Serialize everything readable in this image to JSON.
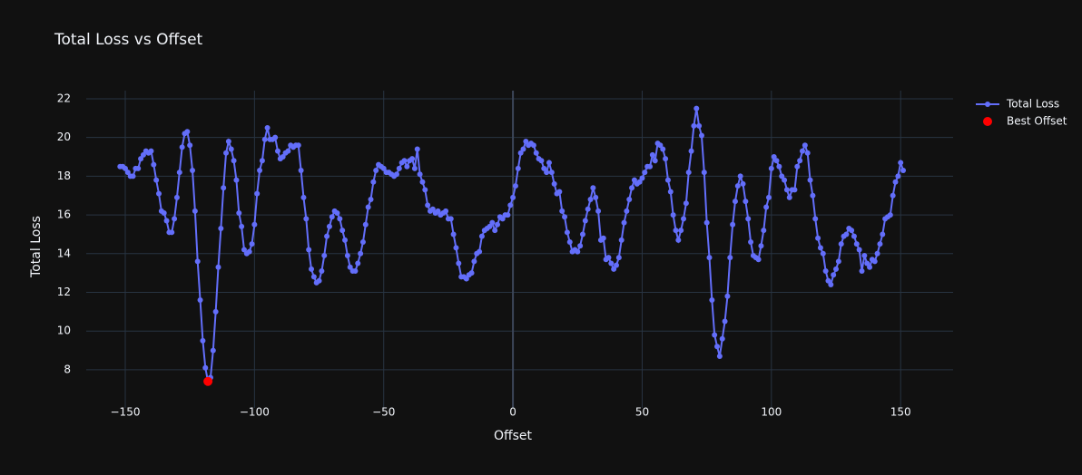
{
  "chart_data": {
    "type": "line",
    "title": "Total Loss vs Offset",
    "x_label": "Offset",
    "y_label": "Total Loss",
    "xlim": [
      -165.1,
      170.3
    ],
    "ylim": [
      6.03,
      22.42
    ],
    "xticks": [
      {
        "value": -150,
        "label": "−150"
      },
      {
        "value": -100,
        "label": "−100"
      },
      {
        "value": -50,
        "label": "−50"
      },
      0,
      50,
      100,
      150
    ],
    "yticks": [
      8,
      10,
      12,
      14,
      16,
      18,
      20,
      22
    ],
    "grid": true,
    "legend": "top-right",
    "series": [
      {
        "name": "Total Loss",
        "color": "#636efa",
        "mode": "lines+markers",
        "x": [
          -152,
          -151,
          -150,
          -149,
          -148,
          -147,
          -146,
          -145,
          -144,
          -143,
          -142,
          -141,
          -140,
          -139,
          -138,
          -137,
          -136,
          -135,
          -134,
          -133,
          -132,
          -131,
          -130,
          -129,
          -128,
          -127,
          -126,
          -125,
          -124,
          -123,
          -122,
          -121,
          -120,
          -119,
          -118,
          -117,
          -116,
          -115,
          -114,
          -113,
          -112,
          -111,
          -110,
          -109,
          -108,
          -107,
          -106,
          -105,
          -104,
          -103,
          -102,
          -101,
          -100,
          -99,
          -98,
          -97,
          -96,
          -95,
          -94,
          -93,
          -92,
          -91,
          -90,
          -89,
          -88,
          -87,
          -86,
          -85,
          -84,
          -83,
          -82,
          -81,
          -80,
          -79,
          -78,
          -77,
          -76,
          -75,
          -74,
          -73,
          -72,
          -71,
          -70,
          -69,
          -68,
          -67,
          -66,
          -65,
          -64,
          -63,
          -62,
          -61,
          -60,
          -59,
          -58,
          -57,
          -56,
          -55,
          -54,
          -53,
          -52,
          -51,
          -50,
          -49,
          -48,
          -47,
          -46,
          -45,
          -44,
          -43,
          -42,
          -41,
          -40,
          -39,
          -38,
          -37,
          -36,
          -35,
          -34,
          -33,
          -32,
          -31,
          -30,
          -29,
          -28,
          -27,
          -26,
          -25,
          -24,
          -23,
          -22,
          -21,
          -20,
          -19,
          -18,
          -17,
          -16,
          -15,
          -14,
          -13,
          -12,
          -11,
          -10,
          -9,
          -8,
          -7,
          -6,
          -5,
          -4,
          -3,
          -2,
          -1,
          0,
          1,
          2,
          3,
          4,
          5,
          6,
          7,
          8,
          9,
          10,
          11,
          12,
          13,
          14,
          15,
          16,
          17,
          18,
          19,
          20,
          21,
          22,
          23,
          24,
          25,
          26,
          27,
          28,
          29,
          30,
          31,
          32,
          33,
          34,
          35,
          36,
          37,
          38,
          39,
          40,
          41,
          42,
          43,
          44,
          45,
          46,
          47,
          48,
          49,
          50,
          51,
          52,
          53,
          54,
          55,
          56,
          57,
          58,
          59,
          60,
          61,
          62,
          63,
          64,
          65,
          66,
          67,
          68,
          69,
          70,
          71,
          72,
          73,
          74,
          75,
          76,
          77,
          78,
          79,
          80,
          81,
          82,
          83,
          84,
          85,
          86,
          87,
          88,
          89,
          90,
          91,
          92,
          93,
          94,
          95,
          96,
          97,
          98,
          99,
          100,
          101,
          102,
          103,
          104,
          105,
          106,
          107,
          108,
          109,
          110,
          111,
          112,
          113,
          114,
          115,
          116,
          117,
          118,
          119,
          120,
          121,
          122,
          123,
          124,
          125,
          126,
          127,
          128,
          129,
          130,
          131,
          132,
          133,
          134,
          135,
          136,
          137,
          138,
          139,
          140,
          141,
          142,
          143,
          144,
          145,
          146,
          147,
          148,
          149,
          150,
          151
        ],
        "values": [
          18.5,
          18.5,
          18.4,
          18.2,
          18.0,
          18.0,
          18.4,
          18.4,
          18.9,
          19.1,
          19.3,
          19.2,
          19.3,
          18.6,
          17.8,
          17.1,
          16.2,
          16.1,
          15.7,
          15.1,
          15.1,
          15.8,
          16.9,
          18.2,
          19.5,
          20.2,
          20.3,
          19.6,
          18.3,
          16.2,
          13.6,
          11.6,
          9.5,
          8.1,
          7.4,
          7.6,
          9.0,
          11.0,
          13.3,
          15.3,
          17.4,
          19.2,
          19.8,
          19.4,
          18.8,
          17.8,
          16.1,
          15.4,
          14.2,
          14.0,
          14.1,
          14.5,
          15.5,
          17.1,
          18.3,
          18.8,
          19.9,
          20.5,
          19.9,
          19.9,
          20.0,
          19.3,
          18.9,
          19.0,
          19.2,
          19.3,
          19.6,
          19.5,
          19.6,
          19.6,
          18.3,
          16.9,
          15.8,
          14.2,
          13.2,
          12.8,
          12.5,
          12.6,
          13.1,
          13.9,
          14.9,
          15.4,
          15.9,
          16.2,
          16.1,
          15.8,
          15.2,
          14.7,
          13.9,
          13.3,
          13.1,
          13.1,
          13.5,
          14.0,
          14.6,
          15.5,
          16.4,
          16.8,
          17.7,
          18.3,
          18.6,
          18.5,
          18.4,
          18.2,
          18.2,
          18.1,
          18.0,
          18.1,
          18.4,
          18.7,
          18.8,
          18.5,
          18.8,
          18.9,
          18.4,
          19.4,
          18.1,
          17.7,
          17.3,
          16.5,
          16.2,
          16.3,
          16.1,
          16.2,
          16.0,
          16.1,
          16.2,
          15.8,
          15.8,
          15.0,
          14.3,
          13.5,
          12.8,
          12.8,
          12.7,
          12.9,
          13.0,
          13.6,
          14.0,
          14.1,
          14.9,
          15.2,
          15.3,
          15.4,
          15.6,
          15.2,
          15.5,
          15.9,
          15.8,
          16.0,
          16.0,
          16.5,
          16.9,
          17.5,
          18.4,
          19.2,
          19.4,
          19.8,
          19.6,
          19.7,
          19.6,
          19.2,
          18.9,
          18.8,
          18.4,
          18.2,
          18.7,
          18.2,
          17.6,
          17.1,
          17.2,
          16.2,
          15.9,
          15.1,
          14.6,
          14.1,
          14.2,
          14.1,
          14.4,
          15.0,
          15.7,
          16.3,
          16.8,
          17.4,
          16.9,
          16.2,
          14.7,
          14.8,
          13.7,
          13.8,
          13.5,
          13.2,
          13.4,
          13.8,
          14.7,
          15.6,
          16.2,
          16.8,
          17.4,
          17.8,
          17.6,
          17.7,
          17.9,
          18.2,
          18.5,
          18.5,
          19.1,
          18.8,
          19.7,
          19.6,
          19.4,
          18.9,
          17.8,
          17.2,
          16.0,
          15.2,
          14.7,
          15.2,
          15.8,
          16.6,
          18.2,
          19.3,
          20.6,
          21.5,
          20.6,
          20.1,
          18.2,
          15.6,
          13.8,
          11.6,
          9.8,
          9.2,
          8.7,
          9.6,
          10.5,
          11.8,
          13.8,
          15.5,
          16.7,
          17.5,
          18.0,
          17.6,
          16.7,
          15.8,
          14.6,
          13.9,
          13.8,
          13.7,
          14.4,
          15.2,
          16.4,
          16.9,
          18.4,
          19.0,
          18.8,
          18.5,
          18.0,
          17.8,
          17.3,
          16.9,
          17.3,
          17.3,
          18.5,
          18.8,
          19.3,
          19.6,
          19.2,
          17.8,
          17.0,
          15.8,
          14.8,
          14.3,
          14.0,
          13.1,
          12.6,
          12.4,
          12.9,
          13.2,
          13.6,
          14.5,
          14.9,
          15.0,
          15.3,
          15.2,
          14.9,
          14.5,
          14.2,
          13.1,
          13.9,
          13.5,
          13.3,
          13.7,
          13.6,
          14.0,
          14.5,
          15.0,
          15.8,
          15.9,
          16.0,
          17.0,
          17.7,
          18.0,
          18.7,
          18.3
        ]
      },
      {
        "name": "Best Offset",
        "color": "#ff0000",
        "mode": "markers",
        "x": [
          -118
        ],
        "values": [
          7.4
        ]
      }
    ]
  }
}
